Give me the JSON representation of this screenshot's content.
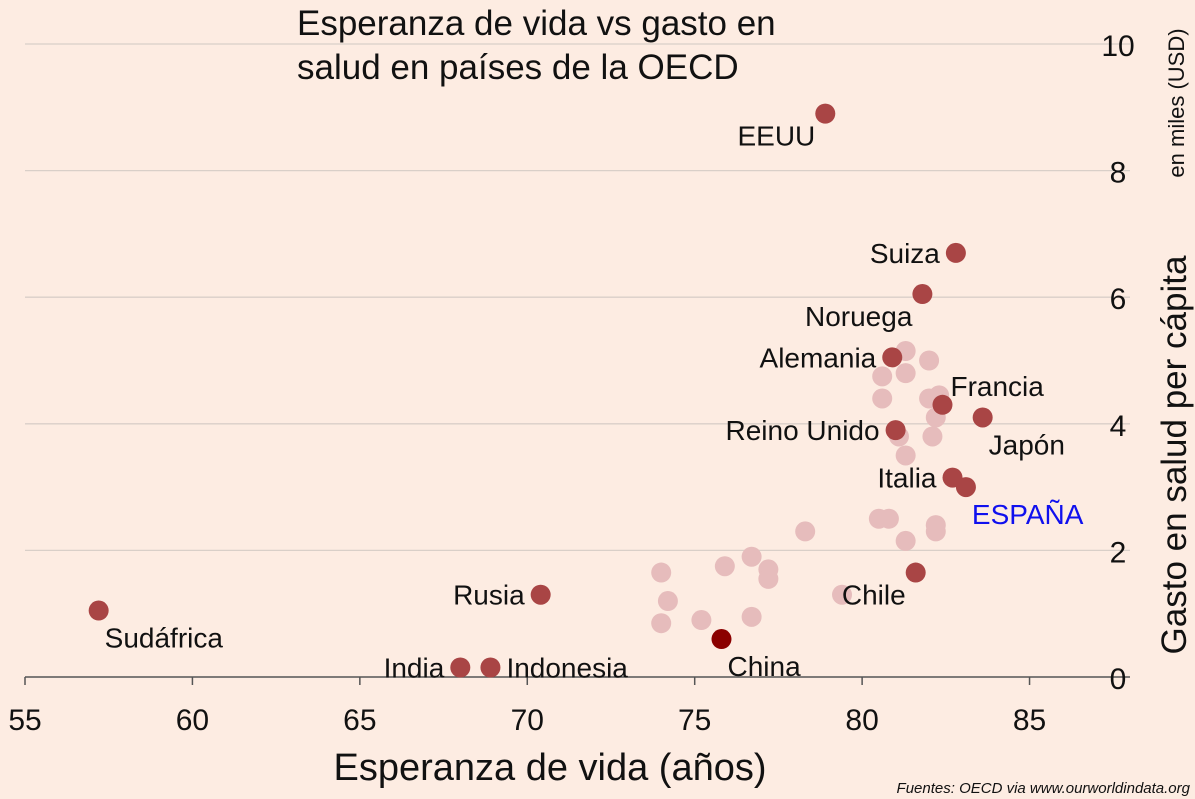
{
  "chart_data": {
    "type": "scatter",
    "title_lines": [
      "Esperanza de vida vs gasto en",
      "salud en países de la OECD"
    ],
    "xlabel": "Esperanza de vida (años)",
    "ylabel": "Gasto en salud per cápita",
    "ylabel_unit": "en miles (USD)",
    "xlim": [
      55,
      88
    ],
    "ylim": [
      0,
      10.3
    ],
    "x_ticks": [
      55,
      60,
      65,
      70,
      75,
      80,
      85
    ],
    "y_ticks": [
      0,
      2,
      4,
      6,
      8,
      10
    ],
    "grid": "horizontal",
    "colors": {
      "background": "#fdece2",
      "highlighted": "#a94545",
      "china": "#8b0000",
      "other": "#e6bcbc",
      "spain_label": "#1010ee"
    },
    "labeled_points": [
      {
        "label": "EEUU",
        "x": 78.9,
        "y": 8.9,
        "label_pos": "below-left"
      },
      {
        "label": "Suiza",
        "x": 82.8,
        "y": 6.7,
        "label_pos": "left"
      },
      {
        "label": "Noruega",
        "x": 81.8,
        "y": 6.05,
        "label_pos": "below-left"
      },
      {
        "label": "Alemania",
        "x": 80.9,
        "y": 5.05,
        "label_pos": "left"
      },
      {
        "label": "Francia",
        "x": 82.4,
        "y": 4.3,
        "label_pos": "above-right"
      },
      {
        "label": "Japón",
        "x": 83.6,
        "y": 4.1,
        "label_pos": "below-right"
      },
      {
        "label": "Reino Unido",
        "x": 81.0,
        "y": 3.9,
        "label_pos": "left"
      },
      {
        "label": "Italia",
        "x": 82.7,
        "y": 3.15,
        "label_pos": "left"
      },
      {
        "label": "ESPAÑA",
        "x": 83.1,
        "y": 3.0,
        "label_pos": "below-right",
        "highlight": true
      },
      {
        "label": "Chile",
        "x": 81.6,
        "y": 1.65,
        "label_pos": "below-left"
      },
      {
        "label": "Rusia",
        "x": 70.4,
        "y": 1.3,
        "label_pos": "left"
      },
      {
        "label": "Sudáfrica",
        "x": 57.2,
        "y": 1.05,
        "label_pos": "below-right"
      },
      {
        "label": "India",
        "x": 68.0,
        "y": 0.15,
        "label_pos": "left"
      },
      {
        "label": "Indonesia",
        "x": 68.9,
        "y": 0.15,
        "label_pos": "right"
      },
      {
        "label": "China",
        "x": 75.8,
        "y": 0.6,
        "label_pos": "below-right",
        "dark": true
      }
    ],
    "other_points": [
      {
        "x": 74.0,
        "y": 1.65
      },
      {
        "x": 74.2,
        "y": 1.2
      },
      {
        "x": 74.0,
        "y": 0.85
      },
      {
        "x": 75.2,
        "y": 0.9
      },
      {
        "x": 75.9,
        "y": 1.75
      },
      {
        "x": 76.7,
        "y": 1.9
      },
      {
        "x": 76.7,
        "y": 0.95
      },
      {
        "x": 77.2,
        "y": 1.7
      },
      {
        "x": 77.2,
        "y": 1.55
      },
      {
        "x": 78.3,
        "y": 2.3
      },
      {
        "x": 79.4,
        "y": 1.3
      },
      {
        "x": 80.5,
        "y": 2.5
      },
      {
        "x": 80.8,
        "y": 2.5
      },
      {
        "x": 81.3,
        "y": 2.15
      },
      {
        "x": 82.2,
        "y": 2.4
      },
      {
        "x": 82.2,
        "y": 2.3
      },
      {
        "x": 81.3,
        "y": 3.5
      },
      {
        "x": 82.1,
        "y": 3.8
      },
      {
        "x": 81.1,
        "y": 3.8
      },
      {
        "x": 82.2,
        "y": 4.1
      },
      {
        "x": 82.0,
        "y": 4.4
      },
      {
        "x": 80.6,
        "y": 4.4
      },
      {
        "x": 82.3,
        "y": 4.45
      },
      {
        "x": 80.6,
        "y": 4.75
      },
      {
        "x": 81.3,
        "y": 4.8
      },
      {
        "x": 82.0,
        "y": 5.0
      },
      {
        "x": 81.3,
        "y": 5.15
      }
    ]
  },
  "source": "Fuentes: OECD via www.ourworldindata.org"
}
